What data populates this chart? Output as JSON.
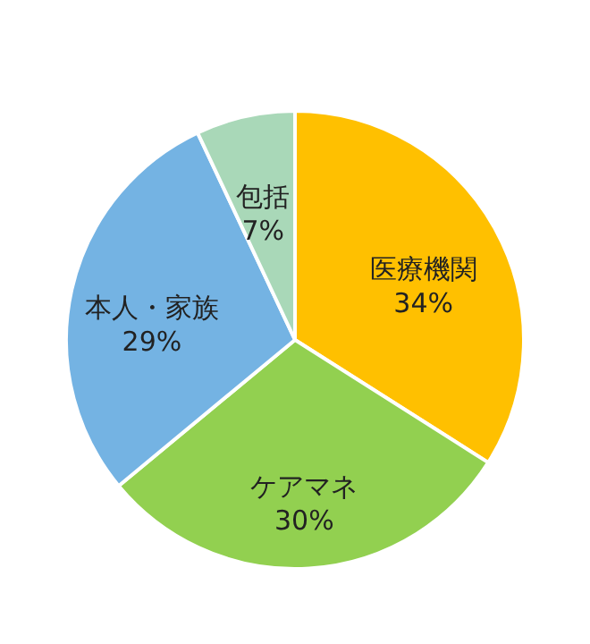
{
  "chart_data": {
    "type": "pie",
    "categories": [
      "医療機関",
      "ケアマネ",
      "本人・家族",
      "包括"
    ],
    "values": [
      34,
      30,
      29,
      7
    ],
    "value_labels": [
      "34%",
      "30%",
      "29%",
      "7%"
    ],
    "colors": [
      "#ffc000",
      "#92d050",
      "#74b3e3",
      "#a9d8b8"
    ]
  }
}
